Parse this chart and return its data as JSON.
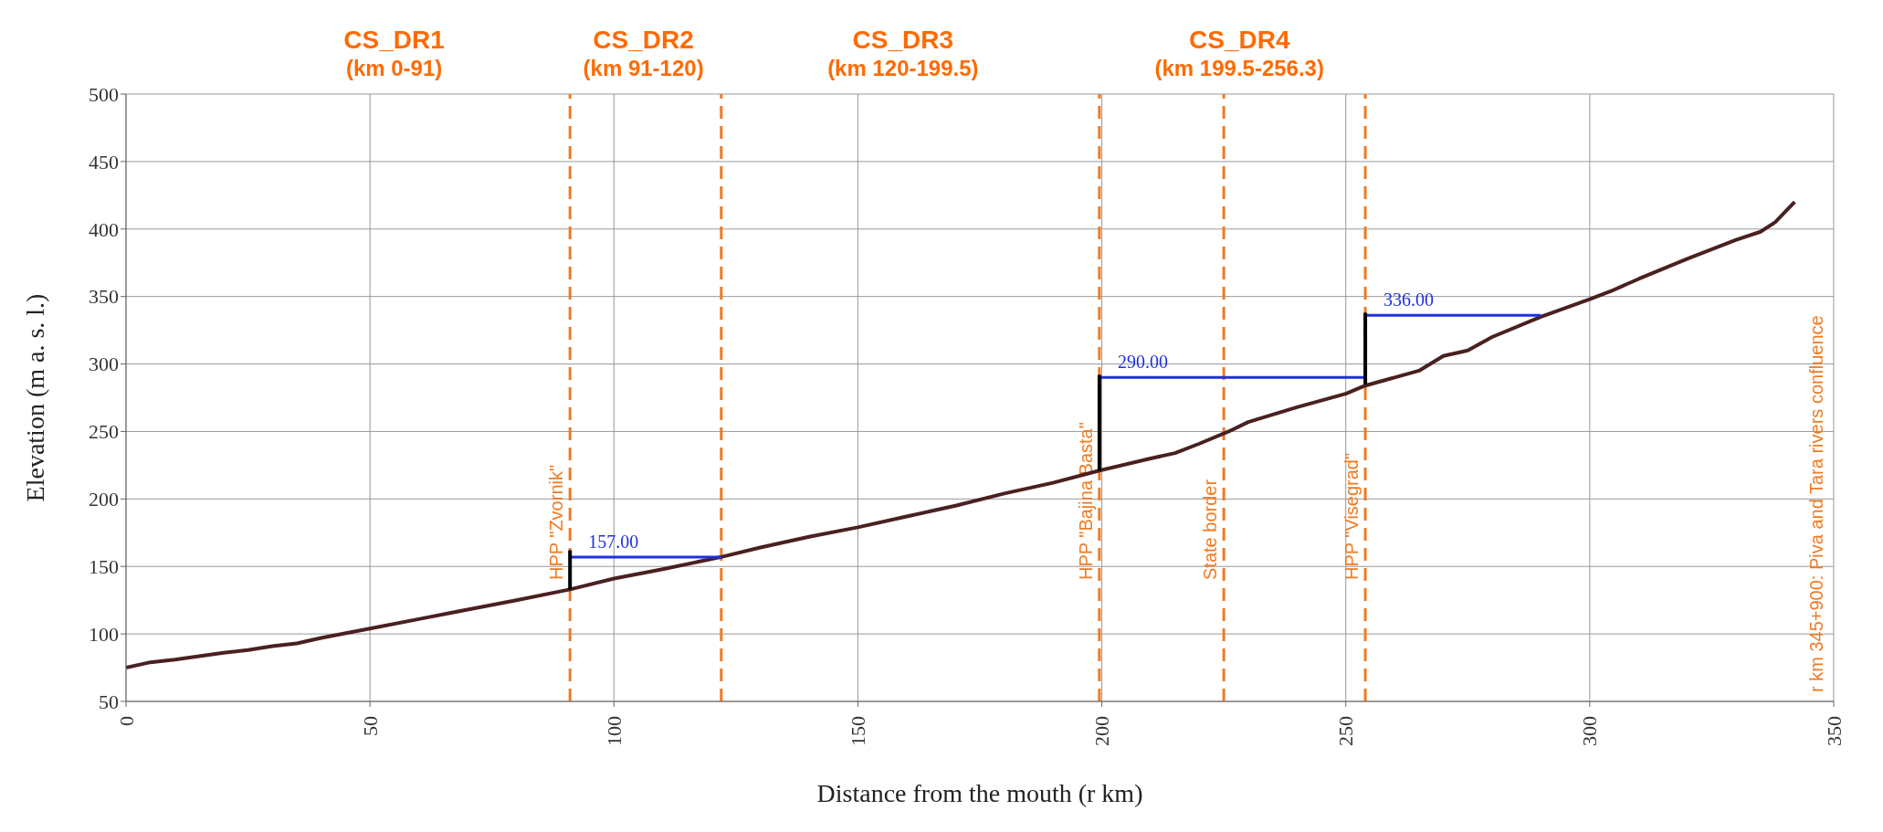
{
  "chart_data": {
    "type": "line",
    "xlabel": "Distance from the mouth (r km)",
    "ylabel": "Elevation (m a. s. l.)",
    "xlim": [
      0,
      350
    ],
    "xticks": [
      0,
      50,
      100,
      150,
      200,
      250,
      300,
      350
    ],
    "ylim": [
      50,
      500
    ],
    "yticks": [
      50,
      100,
      150,
      200,
      250,
      300,
      350,
      400,
      450,
      500
    ],
    "grid": true,
    "marker": "none",
    "line_style": "solid",
    "series": [
      {
        "color": "#4a2020",
        "x": [
          0,
          5,
          10,
          20,
          25,
          30,
          35,
          40,
          50,
          60,
          70,
          80,
          91,
          100,
          110,
          122,
          130,
          140,
          150,
          160,
          170,
          180,
          190,
          199.5,
          210,
          215,
          220,
          226,
          230,
          240,
          250,
          254,
          260,
          265,
          270,
          275,
          280,
          290,
          300,
          305,
          310,
          320,
          330,
          335,
          338,
          342
        ],
        "values": [
          75,
          79,
          81,
          86,
          88,
          91,
          93,
          97,
          104,
          111,
          118,
          125,
          133,
          141,
          148,
          157,
          164,
          172,
          179,
          187,
          195,
          204,
          212,
          221,
          230,
          234,
          241,
          250,
          257,
          268,
          278,
          284,
          290,
          295,
          306,
          310,
          320,
          335,
          348,
          355,
          363,
          378,
          392,
          398,
          405,
          420
        ]
      },
      {
        "color": "#1f2fe0",
        "x": [
          91,
          122
        ],
        "values": [
          157,
          157
        ],
        "value_labels": [
          "157.00",
          null
        ]
      },
      {
        "color": "#1f2fe0",
        "x": [
          199.5,
          254
        ],
        "values": [
          290,
          290
        ],
        "value_labels": [
          "290.00",
          null
        ]
      },
      {
        "color": "#1f2fe0",
        "x": [
          254,
          290
        ],
        "values": [
          336,
          336
        ],
        "value_labels": [
          "336.00",
          null
        ]
      },
      {
        "color": "#000000",
        "x": [
          91,
          91
        ],
        "values": [
          133,
          162
        ]
      },
      {
        "color": "#000000",
        "x": [
          199.5,
          199.5
        ],
        "values": [
          221,
          292
        ]
      },
      {
        "color": "#000000",
        "x": [
          254,
          254
        ],
        "values": [
          285,
          338
        ]
      }
    ],
    "ref_lines": [
      {
        "axis": "x",
        "value": 91,
        "label": "HPP \"Zvornik\"",
        "color": "#f07a20",
        "line_style": "dashed"
      },
      {
        "axis": "x",
        "value": 122,
        "color": "#f07a20",
        "line_style": "dashed"
      },
      {
        "axis": "x",
        "value": 199.5,
        "label": "HPP \"Bajina Basta\"",
        "color": "#f07a20",
        "line_style": "dashed"
      },
      {
        "axis": "x",
        "value": 225,
        "label": "State border",
        "color": "#f07a20",
        "line_style": "dashed"
      },
      {
        "axis": "x",
        "value": 254,
        "label": "HPP \"Visegrad\"",
        "color": "#f07a20",
        "line_style": "dashed"
      }
    ],
    "annotations": [
      "CS_DR1\n(km 0-91)",
      "CS_DR2\n(km 91-120)",
      "CS_DR3\n(km 120-199.5)",
      "CS_DR4\n(km 199.5-256.3)",
      "r km 345+900: Piva and Tara rivers confluence"
    ]
  }
}
